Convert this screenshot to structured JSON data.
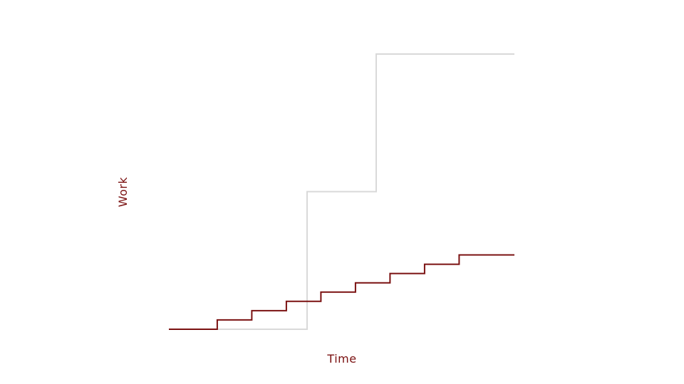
{
  "chart_data": {
    "type": "line",
    "step": true,
    "title": "",
    "xlabel": "Time",
    "ylabel": "Work",
    "xlim": [
      0,
      10
    ],
    "ylim": [
      0,
      8
    ],
    "grid": false,
    "legend": "none",
    "series": [
      {
        "color": "#d9d9d9",
        "x": [
          0,
          4,
          4,
          6,
          6,
          10
        ],
        "y": [
          0,
          0,
          4,
          4,
          8,
          8
        ]
      },
      {
        "color": "#7a1010",
        "x": [
          0,
          1.4,
          1.4,
          2.4,
          2.4,
          3.4,
          3.4,
          4.4,
          4.4,
          5.4,
          5.4,
          6.4,
          6.4,
          7.4,
          7.4,
          8.4,
          8.4,
          10
        ],
        "y": [
          0,
          0,
          0.27,
          0.27,
          0.54,
          0.54,
          0.81,
          0.81,
          1.08,
          1.08,
          1.35,
          1.35,
          1.62,
          1.62,
          1.89,
          1.89,
          2.16,
          2.16
        ]
      }
    ]
  }
}
